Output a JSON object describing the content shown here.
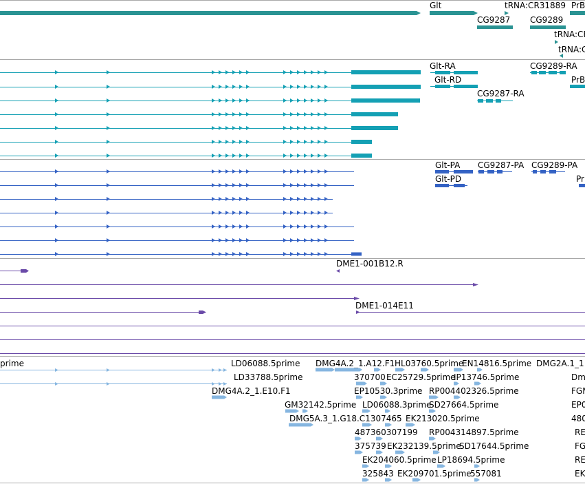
{
  "tracks": [
    {
      "id": "gene",
      "color": "#2a9393",
      "rows": [
        {
          "features": [
            {
              "name": "",
              "type": "thick_arrow"
            }
          ]
        },
        {
          "features": [
            {
              "name": "Glt",
              "type": "thick_arrow"
            },
            {
              "name": "tRNA:CR31889",
              "type": "small_arrow"
            },
            {
              "name": "PrB",
              "type": "thick_cut"
            }
          ]
        },
        {
          "features": [
            {
              "name": "CG9287",
              "type": "thick_bar"
            },
            {
              "name": "CG9289",
              "type": "thick_bar"
            }
          ]
        },
        {
          "features": [
            {
              "name": "tRNA:CF",
              "type": "small_arrow"
            }
          ]
        },
        {
          "features": [
            {
              "name": "tRNA:C",
              "type": "small_arrow_left"
            }
          ]
        }
      ]
    },
    {
      "id": "transcript",
      "color": "#14a0b4",
      "rows": [
        {
          "features": [
            {
              "name": "Glt-RA",
              "type": "transcript"
            },
            {
              "name": "CG9289-RA",
              "type": "transcript"
            }
          ]
        },
        {
          "features": [
            {
              "name": "Glt-RD",
              "type": "transcript"
            },
            {
              "name": "PrB",
              "type": "thick_cut"
            }
          ]
        },
        {
          "features": [
            {
              "name": "CG9287-RA",
              "type": "transcript"
            }
          ]
        }
      ]
    },
    {
      "id": "protein",
      "color": "#3462c4",
      "rows": [
        {
          "features": [
            {
              "name": "Glt-PA",
              "type": "protein"
            },
            {
              "name": "CG9287-PA",
              "type": "protein"
            },
            {
              "name": "CG9289-PA",
              "type": "protein"
            }
          ]
        },
        {
          "features": [
            {
              "name": "Glt-PD",
              "type": "protein"
            },
            {
              "name": "Pr",
              "type": "thick_cut"
            }
          ]
        }
      ]
    },
    {
      "id": "clone",
      "color": "#6a4aa8",
      "rows": [
        {
          "features": [
            {
              "name": "DME1-001B12.R",
              "type": "small_arrow_left"
            }
          ]
        },
        {
          "features": [
            {
              "name": "DME1-014E11",
              "type": "small_arrow"
            }
          ]
        }
      ]
    },
    {
      "id": "est",
      "color": "#86b6e0",
      "labels": [
        "prime",
        "LD06088.5prime",
        "DMG4A.2_1.A12.F1",
        "HL03760.5prime",
        "EN14816.5prime",
        "DMG2A.1_1",
        "LD33788.5prime",
        "370700",
        "EC25729.5prime",
        "IP13746.5prime",
        "Dm",
        "DMG4A.2_1.E10.F1",
        "EP10530.3prime",
        "RP004402326.5prime",
        "FGM",
        "GM32142.5prime",
        "LD06088.3prime",
        "SD27664.5prime",
        "EP0",
        "DMG5A.3_1.G18.C1307465",
        "EK213020.5prime",
        "480",
        "487360307199",
        "RP004314897.5prime",
        "RE",
        "375739",
        "EK232139.5prime",
        "SD17644.5prime",
        "FG",
        "EK204060.5prime",
        "LP18694.5prime",
        "RE",
        "325843",
        "EK209701.5prime",
        "557081",
        "EK"
      ]
    }
  ]
}
